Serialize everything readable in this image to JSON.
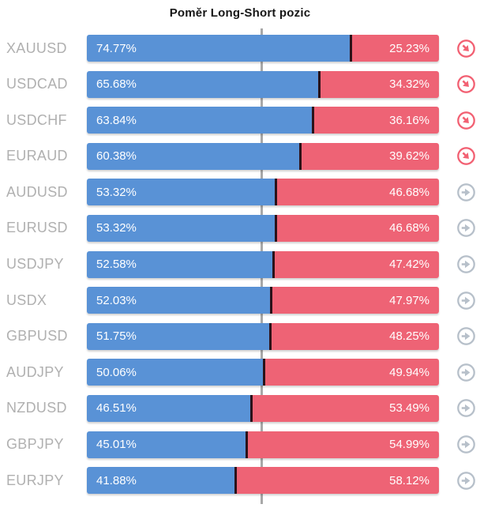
{
  "title": "Poměr Long-Short pozic",
  "colors": {
    "long": "#5992d6",
    "short": "#ee6375",
    "divider": "#2b1219",
    "trend_down_icon": "#f26173",
    "trend_flat_icon": "#b7c0ca",
    "pair_label": "#b0b0b0",
    "center_line": "#a8a8a8",
    "bar_text": "#ffffff",
    "title_text": "#161616"
  },
  "chart_data": {
    "type": "bar",
    "variant": "horizontal-stacked-percent",
    "title": "Poměr Long-Short pozic",
    "series": [
      "Long",
      "Short"
    ],
    "xlim": [
      0,
      100
    ],
    "center_line_at": 50,
    "legend": "none",
    "rows": [
      {
        "pair": "XAUUSD",
        "long": 74.77,
        "short": 25.23,
        "long_label": "74.77%",
        "short_label": "25.23%",
        "trend": "down"
      },
      {
        "pair": "USDCAD",
        "long": 65.68,
        "short": 34.32,
        "long_label": "65.68%",
        "short_label": "34.32%",
        "trend": "down"
      },
      {
        "pair": "USDCHF",
        "long": 63.84,
        "short": 36.16,
        "long_label": "63.84%",
        "short_label": "36.16%",
        "trend": "down"
      },
      {
        "pair": "EURAUD",
        "long": 60.38,
        "short": 39.62,
        "long_label": "60.38%",
        "short_label": "39.62%",
        "trend": "down"
      },
      {
        "pair": "AUDUSD",
        "long": 53.32,
        "short": 46.68,
        "long_label": "53.32%",
        "short_label": "46.68%",
        "trend": "flat"
      },
      {
        "pair": "EURUSD",
        "long": 53.32,
        "short": 46.68,
        "long_label": "53.32%",
        "short_label": "46.68%",
        "trend": "flat"
      },
      {
        "pair": "USDJPY",
        "long": 52.58,
        "short": 47.42,
        "long_label": "52.58%",
        "short_label": "47.42%",
        "trend": "flat"
      },
      {
        "pair": "USDX",
        "long": 52.03,
        "short": 47.97,
        "long_label": "52.03%",
        "short_label": "47.97%",
        "trend": "flat"
      },
      {
        "pair": "GBPUSD",
        "long": 51.75,
        "short": 48.25,
        "long_label": "51.75%",
        "short_label": "48.25%",
        "trend": "flat"
      },
      {
        "pair": "AUDJPY",
        "long": 50.06,
        "short": 49.94,
        "long_label": "50.06%",
        "short_label": "49.94%",
        "trend": "flat"
      },
      {
        "pair": "NZDUSD",
        "long": 46.51,
        "short": 53.49,
        "long_label": "46.51%",
        "short_label": "53.49%",
        "trend": "flat"
      },
      {
        "pair": "GBPJPY",
        "long": 45.01,
        "short": 54.99,
        "long_label": "45.01%",
        "short_label": "54.99%",
        "trend": "flat"
      },
      {
        "pair": "EURJPY",
        "long": 41.88,
        "short": 58.12,
        "long_label": "41.88%",
        "short_label": "58.12%",
        "trend": "flat"
      }
    ]
  }
}
